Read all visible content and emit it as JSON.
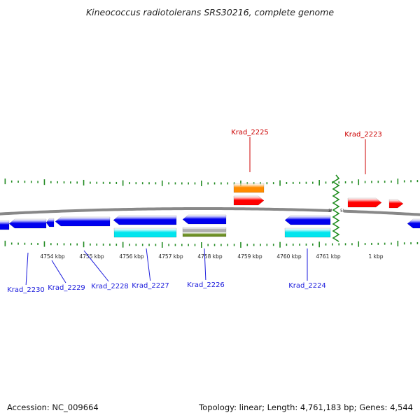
{
  "title": "Kineococcus radiotolerans SRS30216, complete genome",
  "footer": {
    "accession": "Accession: NC_009664",
    "topology": "Topology: linear; Length: 4,761,183 bp; Genes: 4,544"
  },
  "colors": {
    "forward_cds": "#ff0000",
    "reverse_cds": "#0000ee",
    "reverse_label": "#1a1adc",
    "forward_label": "#cc0000",
    "orange_feature": "#ff8c00",
    "cyan_feature": "#00e5ee",
    "gray_feature": "#b0b0b0",
    "olive_feature": "#6b8e23",
    "tick": "#228b22",
    "backbone": "#888888",
    "break": "#1e8c1e"
  },
  "scale_labels": [
    "4754 kbp",
    "4755 kbp",
    "4756 kbp",
    "4757 kbp",
    "4758 kbp",
    "4759 kbp",
    "4760 kbp",
    "4761 kbp",
    "1 kbp"
  ],
  "end_labels": {
    "three_prime": "3'",
    "five_prime": "5'"
  },
  "forward_genes": [
    "Krad_2225",
    "Krad_2223"
  ],
  "reverse_genes": [
    "Krad_2230",
    "Krad_2229",
    "Krad_2228",
    "Krad_2227",
    "Krad_2226",
    "Krad_2224"
  ]
}
